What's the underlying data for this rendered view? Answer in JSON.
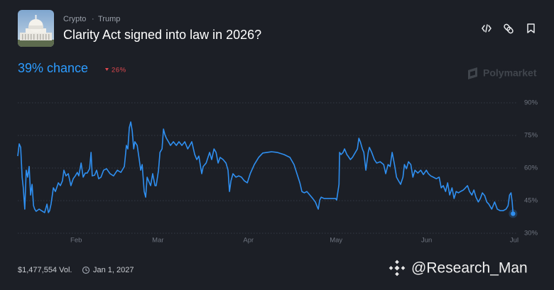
{
  "chart_data": {
    "type": "line",
    "breadcrumbs": [
      "Crypto",
      "Trump"
    ],
    "title": "Clarity Act signed into law in 2026?",
    "chance_label": "39% chance",
    "change_label": "26%",
    "brand": "Polymarket",
    "volume": "$1,477,554 Vol.",
    "end_date": "Jan 1, 2027",
    "watermark": "@Research_Man",
    "color": "#2f8ff0",
    "grid": true,
    "xlim": [
      12,
      182
    ],
    "xticks": [
      {
        "value": 32,
        "label": "Feb"
      },
      {
        "value": 60,
        "label": "Mar"
      },
      {
        "value": 91,
        "label": "Apr"
      },
      {
        "value": 121,
        "label": "May"
      },
      {
        "value": 152,
        "label": "Jun"
      },
      {
        "value": 182,
        "label": "Jul"
      }
    ],
    "ylim": [
      30,
      90
    ],
    "yticks": [
      {
        "value": 90,
        "label": "90%"
      },
      {
        "value": 75,
        "label": "75%"
      },
      {
        "value": 60,
        "label": "60%"
      },
      {
        "value": 45,
        "label": "45%"
      },
      {
        "value": 30,
        "label": "30%"
      }
    ],
    "x": [
      12.0,
      12.5,
      13.0,
      13.5,
      13.9,
      14.4,
      14.9,
      15.4,
      15.9,
      16.4,
      16.9,
      17.4,
      17.8,
      18.3,
      19.3,
      20.5,
      21.2,
      22.0,
      22.5,
      22.9,
      23.4,
      24.2,
      24.9,
      25.9,
      26.6,
      27.3,
      27.8,
      28.5,
      29.3,
      30.2,
      31.0,
      31.7,
      32.4,
      32.9,
      33.7,
      34.4,
      35.1,
      35.8,
      36.6,
      37.1,
      37.5,
      38.3,
      39.0,
      39.7,
      40.5,
      41.4,
      42.4,
      43.6,
      44.8,
      46.1,
      47.3,
      48.5,
      49.2,
      49.7,
      50.2,
      50.7,
      51.2,
      51.7,
      52.1,
      52.9,
      53.6,
      54.1,
      54.6,
      55.3,
      55.8,
      56.3,
      56.8,
      57.5,
      58.2,
      59.0,
      59.4,
      60.2,
      60.7,
      61.4,
      61.9,
      62.4,
      62.9,
      63.6,
      64.3,
      65.3,
      66.3,
      67.2,
      68.2,
      69.2,
      70.2,
      70.9,
      71.6,
      72.6,
      73.3,
      74.0,
      75.0,
      75.5,
      76.5,
      77.7,
      78.4,
      79.2,
      79.9,
      80.6,
      81.3,
      82.3,
      83.3,
      84.0,
      84.5,
      85.0,
      85.7,
      86.7,
      87.7,
      88.6,
      89.6,
      90.6,
      91.6,
      93.0,
      94.5,
      95.9,
      97.4,
      98.9,
      100.8,
      103.2,
      105.2,
      106.6,
      107.6,
      108.6,
      109.3,
      110.1,
      111.0,
      112.0,
      113.0,
      113.9,
      114.4,
      114.9,
      115.4,
      115.9,
      116.9,
      118.8,
      120.8,
      121.2,
      122.0,
      122.2,
      122.7,
      123.4,
      123.9,
      124.7,
      125.1,
      125.9,
      126.6,
      127.6,
      128.3,
      128.8,
      129.3,
      130.0,
      130.5,
      131.2,
      132.0,
      132.4,
      133.2,
      134.1,
      134.9,
      136.1,
      137.3,
      138.0,
      138.8,
      139.5,
      140.2,
      141.0,
      141.7,
      142.4,
      143.1,
      143.9,
      144.4,
      145.1,
      145.8,
      146.6,
      147.3,
      148.0,
      149.0,
      150.0,
      150.9,
      151.9,
      152.6,
      153.4,
      154.3,
      155.3,
      156.3,
      157.0,
      157.7,
      158.5,
      159.2,
      159.9,
      160.7,
      161.4,
      162.1,
      162.9,
      163.6,
      164.6,
      165.3,
      166.0,
      166.7,
      167.5,
      168.2,
      168.9,
      169.7,
      170.4,
      171.1,
      171.9,
      172.6,
      173.3,
      174.3,
      175.3,
      176.2,
      177.2,
      178.2,
      179.2,
      179.9,
      180.4,
      180.9,
      181.3,
      181.6
    ],
    "values": [
      65.5,
      71.1,
      69.5,
      55.8,
      50.9,
      41.1,
      59.0,
      55.8,
      60.7,
      47.6,
      52.5,
      42.7,
      41.1,
      40.1,
      41.1,
      40.1,
      39.5,
      43.4,
      39.5,
      40.4,
      43.4,
      50.9,
      49.2,
      53.2,
      51.9,
      54.1,
      59.0,
      56.4,
      57.4,
      51.9,
      55.1,
      56.4,
      58.0,
      56.4,
      62.3,
      55.8,
      57.7,
      57.7,
      59.7,
      67.2,
      56.4,
      56.7,
      59.0,
      55.1,
      55.8,
      59.0,
      59.7,
      57.4,
      56.4,
      59.0,
      58.0,
      60.7,
      70.4,
      68.8,
      78.6,
      81.2,
      77.0,
      68.8,
      72.1,
      70.4,
      63.9,
      59.0,
      61.6,
      49.2,
      46.6,
      55.8,
      54.1,
      51.9,
      57.4,
      51.9,
      51.9,
      59.0,
      67.2,
      68.8,
      77.9,
      75.3,
      73.7,
      72.1,
      70.4,
      72.1,
      70.4,
      72.1,
      70.4,
      72.1,
      68.8,
      70.4,
      72.1,
      66.2,
      63.9,
      65.5,
      57.4,
      60.7,
      62.3,
      67.2,
      63.9,
      68.8,
      67.2,
      62.3,
      64.9,
      63.9,
      62.3,
      59.0,
      49.2,
      54.1,
      57.4,
      55.8,
      56.4,
      55.8,
      54.1,
      53.2,
      57.4,
      61.6,
      64.9,
      66.9,
      67.2,
      67.5,
      67.2,
      66.2,
      64.9,
      61.6,
      57.4,
      53.2,
      49.2,
      48.6,
      49.2,
      47.6,
      46.0,
      44.4,
      42.7,
      41.1,
      45.3,
      46.6,
      46.0,
      46.0,
      46.0,
      45.3,
      52.5,
      67.2,
      66.2,
      67.2,
      68.8,
      66.2,
      65.5,
      63.9,
      64.9,
      67.2,
      68.8,
      73.7,
      72.1,
      68.8,
      67.2,
      59.0,
      67.2,
      69.5,
      67.2,
      63.9,
      62.3,
      62.9,
      61.6,
      57.4,
      61.6,
      60.7,
      67.2,
      61.6,
      55.8,
      54.1,
      52.5,
      55.8,
      61.6,
      59.7,
      62.9,
      61.6,
      55.8,
      59.0,
      57.7,
      59.0,
      57.0,
      59.0,
      57.4,
      56.4,
      55.8,
      55.1,
      55.8,
      50.9,
      51.9,
      49.2,
      53.2,
      47.6,
      50.9,
      46.0,
      49.2,
      48.6,
      49.2,
      49.9,
      50.9,
      51.9,
      49.2,
      47.6,
      49.9,
      46.6,
      44.4,
      46.0,
      48.6,
      47.3,
      44.4,
      43.4,
      41.1,
      44.4,
      41.1,
      40.4,
      40.4,
      41.1,
      42.7,
      47.6,
      48.6,
      44.4,
      39
    ]
  }
}
